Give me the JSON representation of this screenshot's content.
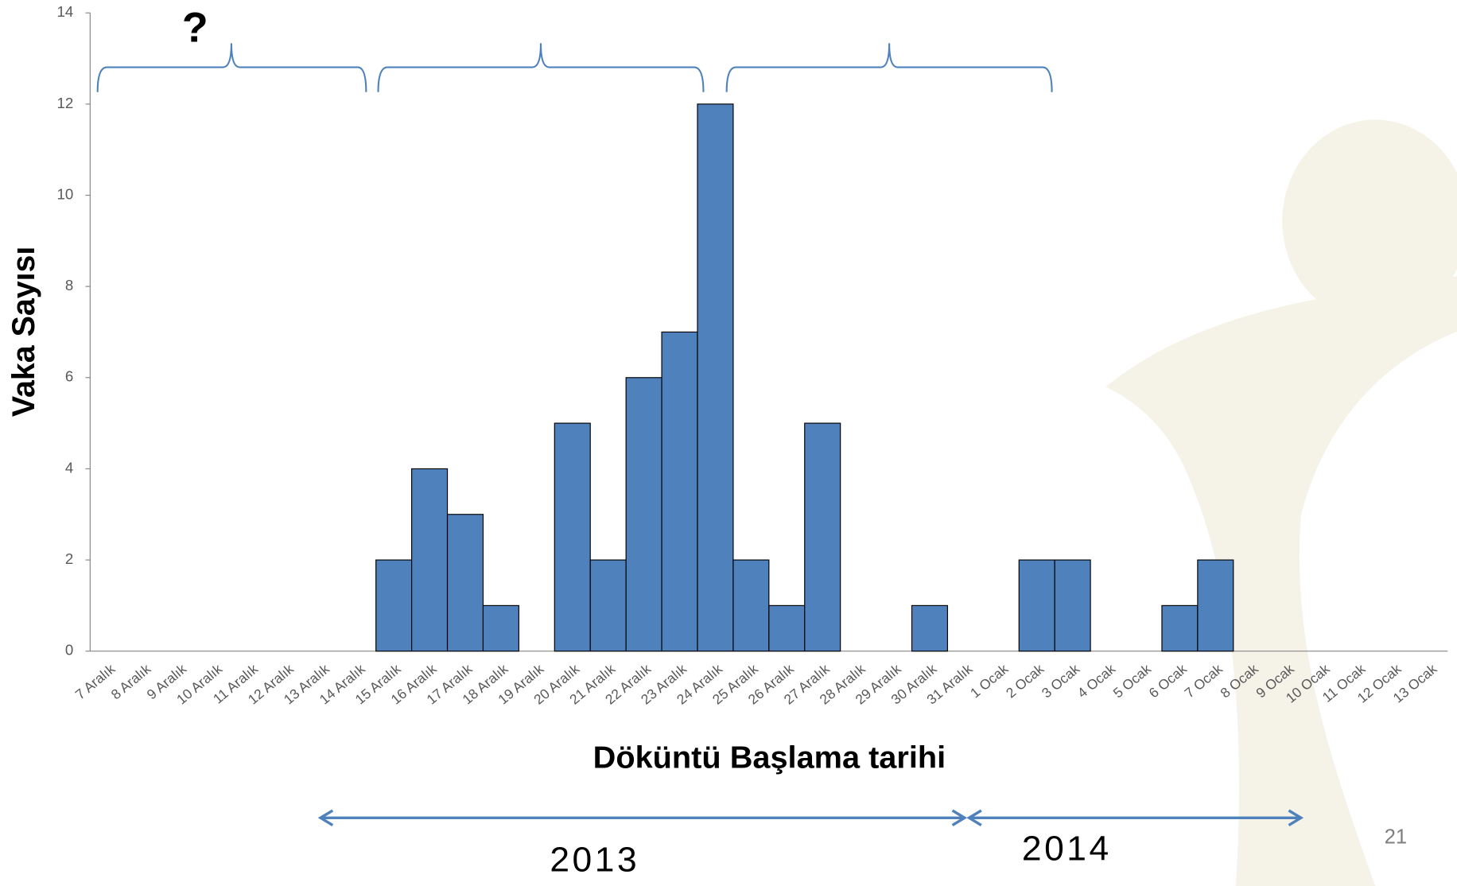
{
  "chart_data": {
    "type": "bar",
    "y_label": "Vaka Sayısı",
    "x_label": "Döküntü Başlama tarihi",
    "categories": [
      "7 Aralık",
      "8 Aralık",
      "9 Aralık",
      "10 Aralık",
      "11 Aralık",
      "12 Aralık",
      "13 Aralık",
      "14 Aralık",
      "15 Aralık",
      "16 Aralık",
      "17 Aralık",
      "18 Aralık",
      "19 Aralık",
      "20 Aralık",
      "21 Aralık",
      "22 Aralık",
      "23 Aralık",
      "24 Aralık",
      "25 Aralık",
      "26 Aralık",
      "27 Aralık",
      "28 Aralık",
      "29 Aralık",
      "30 Aralık",
      "31 Aralık",
      "1 Ocak",
      "2 Ocak",
      "3 Ocak",
      "4 Ocak",
      "5 Ocak",
      "6 Ocak",
      "7 Ocak",
      "8 Ocak",
      "9 Ocak",
      "10 Ocak",
      "11 Ocak",
      "12 Ocak",
      "13 Ocak"
    ],
    "values": [
      0,
      0,
      0,
      0,
      0,
      0,
      0,
      0,
      2,
      4,
      3,
      1,
      0,
      5,
      2,
      6,
      7,
      12,
      2,
      1,
      5,
      0,
      0,
      1,
      0,
      0,
      2,
      2,
      0,
      0,
      1,
      2,
      0,
      0,
      0,
      0,
      0,
      0
    ],
    "color": "#4f81bd",
    "ylim": [
      0,
      14
    ],
    "yticks": [
      0,
      2,
      4,
      6,
      8,
      10,
      12,
      14
    ],
    "grid": false,
    "annotations": [
      "?",
      "2013",
      "2014"
    ],
    "page_number": "21"
  }
}
